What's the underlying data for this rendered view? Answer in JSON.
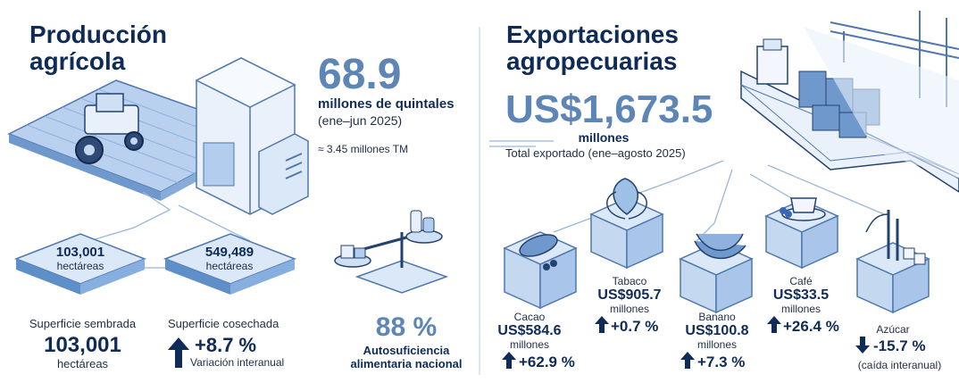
{
  "left": {
    "title_line1": "Producción",
    "title_line2": "agrícola",
    "production_value": "68.9",
    "production_unit": "millones de quintales",
    "production_period": "(ene–jun 2025)",
    "production_equiv": "≈ 3.45 millones TM",
    "tile1_value": "103,001",
    "tile1_unit": "hectáreas",
    "tile2_value": "549,489",
    "tile2_unit": "hectáreas",
    "sown_label": "Superficie sembrada",
    "sown_value": "103,001",
    "sown_unit": "hectáreas",
    "harvest_label": "Superficie cosechada",
    "harvest_change": "+8.7 %",
    "harvest_change_label": "Variación interanual",
    "selfsuff_value": "88 %",
    "selfsuff_label1": "Autosuficiencia",
    "selfsuff_label2": "alimentaria nacional"
  },
  "right": {
    "title_line1": "Exportaciones",
    "title_line2": "agropecuarias",
    "export_value": "US$1,673.5",
    "export_unit": "millones",
    "export_period": "Total exportado (ene–agosto 2025)",
    "products": [
      {
        "name": "Cacao",
        "value": "US$584.6",
        "unit": "millones",
        "change": "+62.9 %",
        "direction": "up"
      },
      {
        "name": "Tabaco",
        "value": "US$905.7",
        "unit": "millones",
        "change": "+0.7 %",
        "direction": "up"
      },
      {
        "name": "Banano",
        "value": "US$100.8",
        "unit": "millones",
        "change": "+7.3 %",
        "direction": "up"
      },
      {
        "name": "Café",
        "value": "US$33.5",
        "unit": "millones",
        "change": "+26.4 %",
        "direction": "up"
      },
      {
        "name": "Azúcar",
        "value": "",
        "unit": "",
        "change": "-15.7 %",
        "direction": "down",
        "note": "(caída interanual)"
      }
    ]
  },
  "colors": {
    "title": "#0f2b57",
    "accent": "#5d86b6",
    "tile_light": "#dbe8f7",
    "tile_mid": "#a9c6ea",
    "tile_dark": "#5f8fc9"
  }
}
